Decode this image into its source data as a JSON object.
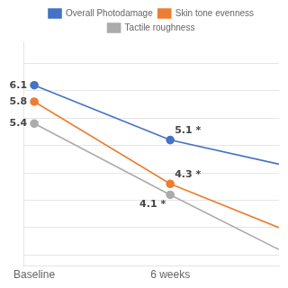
{
  "chart_data": {
    "type": "line",
    "x": [
      0,
      1,
      1.8
    ],
    "series": [
      {
        "name": "Overall Photodamage",
        "color": "#4472C4",
        "marker": "o",
        "values": [
          6.1,
          5.1,
          4.66
        ]
      },
      {
        "name": "Skin tone evenness",
        "color": "#ED7D31",
        "marker": "o",
        "values": [
          5.8,
          4.3,
          3.5
        ]
      },
      {
        "name": "Tactile roughness",
        "color": "#ABABAB",
        "marker": "o",
        "values": [
          5.4,
          4.1,
          3.1
        ]
      }
    ],
    "xlim": [
      -0.08,
      1.8
    ],
    "ylim": [
      2.8,
      6.9
    ],
    "xticks": [
      {
        "value": 0,
        "label": "Baseline"
      },
      {
        "value": 1,
        "label": "6 weeks"
      }
    ],
    "yticks": [
      3.0,
      3.5,
      4.0,
      4.5,
      5.0,
      5.5,
      6.0,
      6.5
    ],
    "grid": "y",
    "tick_labels": "x",
    "legend": "top",
    "annotations": [
      {
        "text": "6.1",
        "x": 0,
        "y": 6.1
      },
      {
        "text": "5.1 *",
        "x": 1,
        "y": 5.1
      },
      {
        "text": "5.8",
        "x": 0,
        "y": 5.8
      },
      {
        "text": "4.3 *",
        "x": 1,
        "y": 4.3
      },
      {
        "text": "5.4",
        "x": 0,
        "y": 5.4
      },
      {
        "text": "4.1 *",
        "x": 1,
        "y": 4.1
      }
    ]
  }
}
